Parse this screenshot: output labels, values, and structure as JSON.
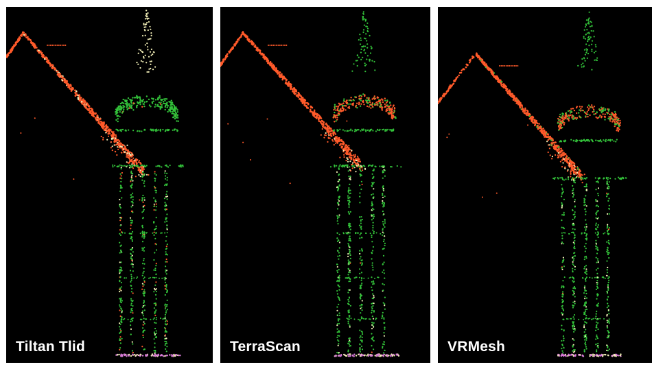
{
  "panels": [
    {
      "label": "Tiltan Tlid",
      "classification": "roof=orange, tower-top=cream, tower=green, ground=magenta"
    },
    {
      "label": "TerraScan",
      "classification": "roof=orange, tower=green, ground=magenta"
    },
    {
      "label": "VRMesh",
      "classification": "roof=orange, tower=green, ground=magenta"
    }
  ],
  "colors": {
    "background": "#000000",
    "roof": "#ff5a2a",
    "tower": "#33c23a",
    "highlight": "#f3f0b8",
    "ground": "#d87ad8",
    "label": "#ffffff"
  }
}
